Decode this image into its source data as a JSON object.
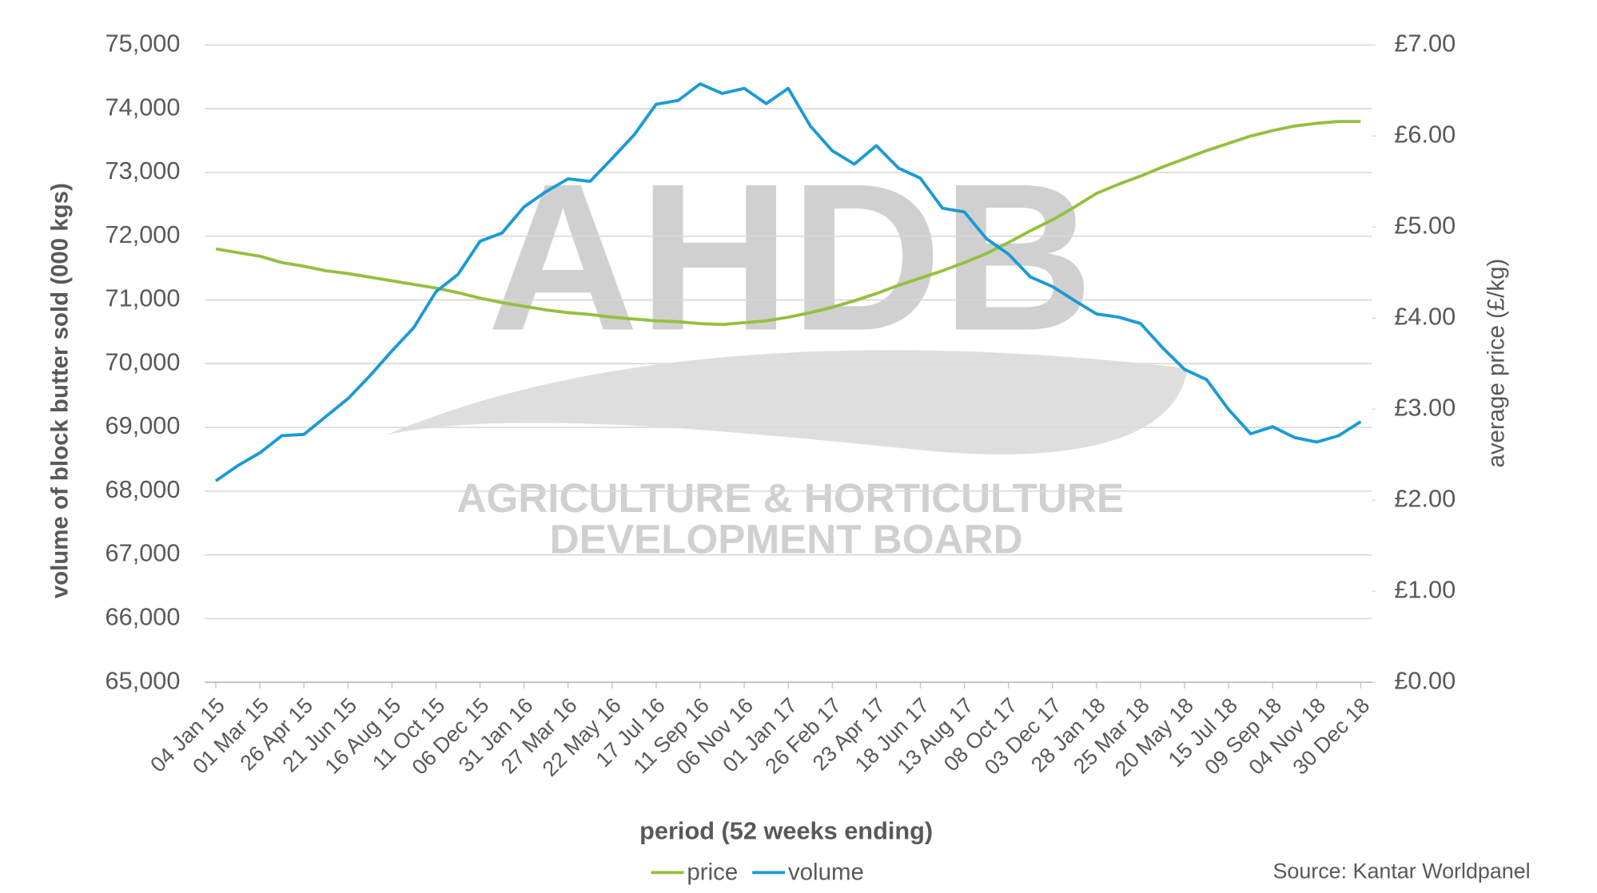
{
  "chart_data": {
    "type": "line",
    "x_label": "period (52 weeks ending)",
    "y_label": "volume of block butter sold (000 kgs)",
    "y2_label": "average price (£/kg)",
    "source": "Source: Kantar Worldpanel",
    "watermark": {
      "logo": "AHDB",
      "lines": [
        "AGRICULTURE & HORTICULTURE",
        "DEVELOPMENT BOARD"
      ]
    },
    "categories": [
      "04 Jan 15",
      null,
      "01 Mar 15",
      null,
      "26 Apr 15",
      null,
      "21 Jun 15",
      null,
      "16 Aug 15",
      null,
      "11 Oct 15",
      null,
      "06 Dec 15",
      null,
      "31 Jan 16",
      null,
      "27 Mar 16",
      null,
      "22 May 16",
      null,
      "17 Jul 16",
      null,
      "11 Sep 16",
      null,
      "06 Nov 16",
      null,
      "01 Jan 17",
      null,
      "26 Feb 17",
      null,
      "23 Apr 17",
      null,
      "18 Jun 17",
      null,
      "13 Aug 17",
      null,
      "08 Oct 17",
      null,
      "03 Dec 17",
      null,
      "28 Jan 18",
      null,
      "25 Mar 18",
      null,
      "20 May 18",
      null,
      "15 Jul 18",
      null,
      "09 Sep 18",
      null,
      "04 Nov 18",
      null,
      "30 Dec 18"
    ],
    "series": [
      {
        "name": "price",
        "color": "#92c13e",
        "axis": "y2",
        "values": [
          4.76,
          4.72,
          4.68,
          4.61,
          4.57,
          4.52,
          4.49,
          4.45,
          4.41,
          4.37,
          4.33,
          4.28,
          4.22,
          4.17,
          4.13,
          4.09,
          4.06,
          4.04,
          4.01,
          3.99,
          3.97,
          3.96,
          3.94,
          3.93,
          3.95,
          3.97,
          4.01,
          4.06,
          4.12,
          4.19,
          4.27,
          4.36,
          4.44,
          4.52,
          4.61,
          4.71,
          4.83,
          4.96,
          5.08,
          5.22,
          5.37,
          5.47,
          5.56,
          5.66,
          5.75,
          5.84,
          5.92,
          6.0,
          6.06,
          6.11,
          6.14,
          6.16,
          6.16
        ]
      },
      {
        "name": "volume",
        "color": "#1a9ad6",
        "values": [
          68160,
          68400,
          68600,
          68870,
          68890,
          69170,
          69450,
          69810,
          70200,
          70570,
          71130,
          71400,
          71920,
          72050,
          72460,
          72700,
          72900,
          72860,
          73220,
          73590,
          74070,
          74130,
          74390,
          74240,
          74320,
          74080,
          74320,
          73730,
          73340,
          73130,
          73420,
          73070,
          72910,
          72440,
          72380,
          71960,
          71720,
          71360,
          71210,
          70990,
          70780,
          70730,
          70630,
          70250,
          69910,
          69750,
          69280,
          68900,
          69010,
          68840,
          68770,
          68870,
          69090
        ]
      }
    ],
    "ylim": [
      65000,
      75000
    ],
    "yticks": [
      {
        "value": 65000,
        "label": "65,000"
      },
      {
        "value": 66000,
        "label": "66,000"
      },
      {
        "value": 67000,
        "label": "67,000"
      },
      {
        "value": 68000,
        "label": "68,000"
      },
      {
        "value": 69000,
        "label": "69,000"
      },
      {
        "value": 70000,
        "label": "70,000"
      },
      {
        "value": 71000,
        "label": "71,000"
      },
      {
        "value": 72000,
        "label": "72,000"
      },
      {
        "value": 73000,
        "label": "73,000"
      },
      {
        "value": 74000,
        "label": "74,000"
      },
      {
        "value": 75000,
        "label": "75,000"
      }
    ],
    "y2lim": [
      0,
      7
    ],
    "y2ticks": [
      {
        "value": 0,
        "label": "£0.00"
      },
      {
        "value": 1,
        "label": "£1.00"
      },
      {
        "value": 2,
        "label": "£2.00"
      },
      {
        "value": 3,
        "label": "£3.00"
      },
      {
        "value": 4,
        "label": "£4.00"
      },
      {
        "value": 5,
        "label": "£5.00"
      },
      {
        "value": 6,
        "label": "£6.00"
      },
      {
        "value": 7,
        "label": "£7.00"
      }
    ],
    "grid": true,
    "legend": "bottom"
  }
}
